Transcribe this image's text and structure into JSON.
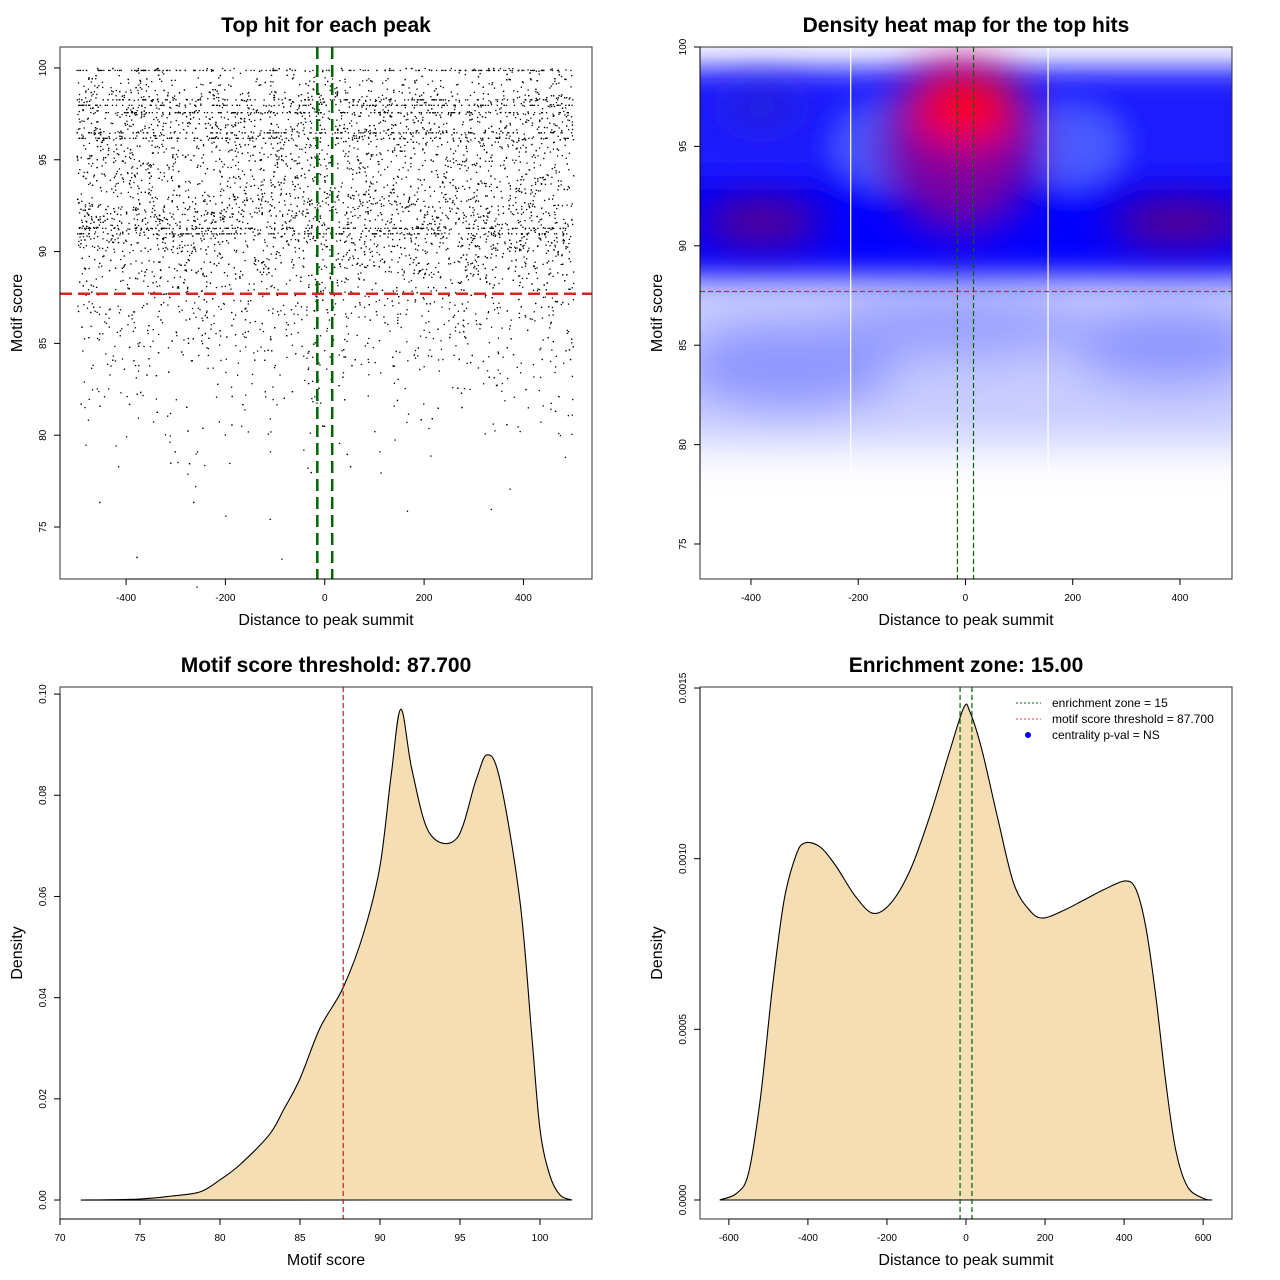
{
  "chart_data": [
    {
      "id": "scatter",
      "type": "scatter",
      "title": "Top hit for each peak",
      "xlabel": "Distance to peak summit",
      "ylabel": "Motif score",
      "xlim": [
        -533,
        538
      ],
      "ylim": [
        72.17,
        101.14
      ],
      "xticks": [
        -400,
        -200,
        0,
        200,
        400
      ],
      "yticks": [
        75,
        80,
        85,
        90,
        95,
        100
      ],
      "x_range_of_points": [
        -500,
        500
      ],
      "n_points_approx": 6500,
      "hlines": [
        {
          "value": 87.7,
          "color": "#dd2222",
          "style": "dashed"
        }
      ],
      "vlines": [
        {
          "value": -15,
          "color": "#006400",
          "style": "dashed"
        },
        {
          "value": 15,
          "color": "#006400",
          "style": "dashed"
        }
      ],
      "point_color": "#000000"
    },
    {
      "id": "heatmap",
      "type": "heatmap",
      "title": "Density heat map for the top hits",
      "xlabel": "Distance to peak summit",
      "ylabel": "Motif score",
      "xlim": [
        -495,
        497
      ],
      "ylim": [
        73.24,
        100
      ],
      "xticks": [
        -400,
        -200,
        0,
        200,
        400
      ],
      "yticks": [
        75,
        80,
        85,
        90,
        95,
        100
      ],
      "hotspots": [
        {
          "x": 0,
          "y": 97,
          "level": "high"
        },
        {
          "x": -380,
          "y": 91,
          "level": "medium"
        },
        {
          "x": 400,
          "y": 91,
          "level": "medium"
        },
        {
          "x": -380,
          "y": 97,
          "level": "medium"
        }
      ],
      "colors": {
        "low": "#ffffff",
        "mid": "#0000ff",
        "high": "#ff0000"
      },
      "hlines": [
        {
          "value": 87.7,
          "color": "#dd2222",
          "style": "dashed"
        }
      ],
      "vlines": [
        {
          "value": -15,
          "color": "#006400",
          "style": "dashed"
        },
        {
          "value": 15,
          "color": "#006400",
          "style": "dashed"
        }
      ]
    },
    {
      "id": "score-density",
      "type": "area",
      "title": "Motif score threshold: 87.700",
      "xlabel": "Motif score",
      "ylabel": "Density",
      "xlim": [
        70,
        103.25
      ],
      "ylim": [
        -0.00375,
        0.1014
      ],
      "xticks": [
        70,
        75,
        80,
        85,
        90,
        95,
        100
      ],
      "yticks": [
        0.0,
        0.02,
        0.04,
        0.06,
        0.08,
        0.1
      ],
      "ytick_labels": [
        "0.00",
        "0.02",
        "0.04",
        "0.06",
        "0.08",
        "0.10"
      ],
      "x": [
        71.3,
        75,
        77,
        78.75,
        80,
        81.25,
        83.1,
        84,
        85,
        86.25,
        87.7,
        89,
        90,
        90.7,
        91.3,
        92,
        93.1,
        94.8,
        96,
        96.7,
        97.5,
        98.75,
        99.5,
        100,
        100.6,
        101.25,
        102
      ],
      "y": [
        0,
        0.0002,
        0.0008,
        0.0016,
        0.004,
        0.007,
        0.013,
        0.018,
        0.024,
        0.034,
        0.042,
        0.053,
        0.066,
        0.084,
        0.097,
        0.085,
        0.0725,
        0.0715,
        0.083,
        0.088,
        0.083,
        0.059,
        0.032,
        0.014,
        0.005,
        0.001,
        0
      ],
      "fill": "#f5deb3",
      "vlines": [
        {
          "value": 87.7,
          "color": "#b22222",
          "style": "dashed"
        }
      ]
    },
    {
      "id": "position-density",
      "type": "area",
      "title": "Enrichment zone: 15.00",
      "xlabel": "Distance to peak summit",
      "ylabel": "Density",
      "xlim": [
        -673,
        673
      ],
      "ylim": [
        -5.57e-05,
        0.001503
      ],
      "xticks": [
        -600,
        -400,
        -200,
        0,
        200,
        400,
        600
      ],
      "yticks": [
        0,
        0.0005,
        0.001,
        0.0015
      ],
      "ytick_labels": [
        "0.0000",
        "0.0005",
        "0.0010",
        "0.0015"
      ],
      "x": [
        -623,
        -580,
        -550,
        -520,
        -490,
        -460,
        -430,
        -408,
        -370,
        -330,
        -280,
        -235,
        -190,
        -140,
        -90,
        -40,
        -5,
        10,
        40,
        80,
        120,
        160,
        195,
        250,
        300,
        350,
        403,
        430,
        455,
        480,
        505,
        530,
        560,
        600,
        623
      ],
      "y": [
        0,
        2e-05,
        8e-05,
        0.0003,
        0.00062,
        0.00088,
        0.00101,
        0.001046,
        0.001035,
        0.00098,
        0.00089,
        0.00084,
        0.00087,
        0.00097,
        0.00113,
        0.00132,
        0.001444,
        0.00143,
        0.00132,
        0.00112,
        0.00093,
        0.00085,
        0.000826,
        0.00085,
        0.00088,
        0.00091,
        0.000935,
        0.00091,
        0.0008,
        0.0006,
        0.00035,
        0.00015,
        4e-05,
        5e-06,
        0
      ],
      "fill": "#f5deb3",
      "vlines": [
        {
          "value": -15,
          "color": "#006400",
          "style": "dashed"
        },
        {
          "value": 15,
          "color": "#006400",
          "style": "dashed"
        }
      ],
      "legend": {
        "placement": "top-right",
        "entries": [
          {
            "label": "enrichment zone = 15",
            "color": "#006400",
            "symbol": "dotted-line"
          },
          {
            "label": "motif score threshold = 87.700",
            "color": "#ff3333",
            "symbol": "dotted-line"
          },
          {
            "label": "centrality p-val = NS",
            "color": "#0000ff",
            "symbol": "dot"
          }
        ]
      }
    }
  ]
}
